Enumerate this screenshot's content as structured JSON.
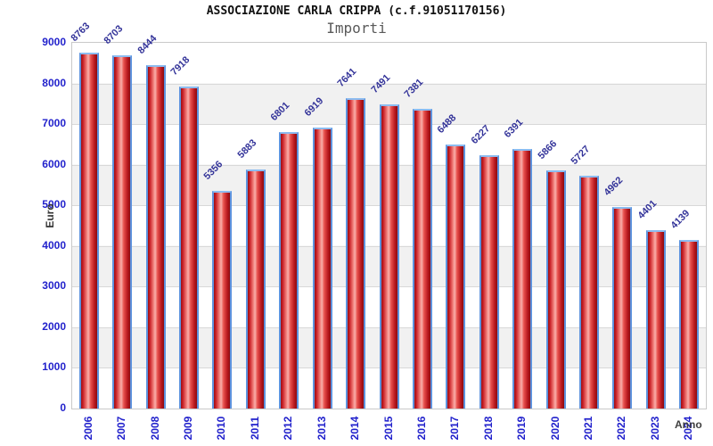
{
  "header": {
    "title": "ASSOCIAZIONE CARLA CRIPPA (c.f.91051170156)",
    "subtitle": "Importi"
  },
  "chart_data": {
    "type": "bar",
    "title": "ASSOCIAZIONE CARLA CRIPPA (c.f.91051170156)",
    "subtitle": "Importi",
    "xlabel": "Anno",
    "ylabel": "Euro",
    "categories": [
      "2006",
      "2007",
      "2008",
      "2009",
      "2010",
      "2011",
      "2012",
      "2013",
      "2014",
      "2015",
      "2016",
      "2017",
      "2018",
      "2019",
      "2020",
      "2021",
      "2022",
      "2023",
      "2024"
    ],
    "values": [
      8763,
      8703,
      8444,
      7918,
      5356,
      5883,
      6801,
      6919,
      7641,
      7491,
      7381,
      6488,
      6227,
      6391,
      5866,
      5727,
      4962,
      4401,
      4139
    ],
    "ylim": [
      0,
      9000
    ],
    "ytick_step": 1000,
    "yticks": [
      "0",
      "1000",
      "2000",
      "3000",
      "4000",
      "5000",
      "6000",
      "7000",
      "8000",
      "9000"
    ],
    "grid": true,
    "legend": "none",
    "colors": {
      "bar_fill": "#d5201f",
      "bar_border": "#5e93de",
      "value_label": "#333399",
      "axis_tick_label": "#2222cc",
      "band_alt": "#f1f1f1",
      "gridline": "#d8d8d8",
      "title": "#111111",
      "subtitle": "#5a5a5a"
    }
  }
}
